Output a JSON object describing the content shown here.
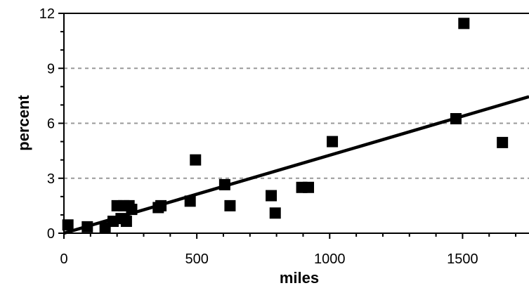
{
  "chart_data": {
    "type": "scatter",
    "xlabel": "miles",
    "ylabel": "percent",
    "xlim": [
      0,
      1750
    ],
    "ylim": [
      0,
      12
    ],
    "xticks": [
      0,
      500,
      1000,
      1500
    ],
    "yticks": [
      0,
      3,
      6,
      9,
      12
    ],
    "grid": "horizontal-dashed",
    "legend": "none",
    "marker_color": "#000000",
    "gridline_color": "#999999",
    "points": [
      {
        "x": 15,
        "y": 0.45
      },
      {
        "x": 88,
        "y": 0.35
      },
      {
        "x": 155,
        "y": 0.3
      },
      {
        "x": 185,
        "y": 0.65
      },
      {
        "x": 200,
        "y": 1.5
      },
      {
        "x": 215,
        "y": 0.8
      },
      {
        "x": 225,
        "y": 1.5
      },
      {
        "x": 235,
        "y": 0.65
      },
      {
        "x": 245,
        "y": 1.5
      },
      {
        "x": 255,
        "y": 1.3
      },
      {
        "x": 355,
        "y": 1.4
      },
      {
        "x": 365,
        "y": 1.5
      },
      {
        "x": 475,
        "y": 1.75
      },
      {
        "x": 495,
        "y": 4.0
      },
      {
        "x": 605,
        "y": 2.65
      },
      {
        "x": 625,
        "y": 1.5
      },
      {
        "x": 780,
        "y": 2.05
      },
      {
        "x": 795,
        "y": 1.1
      },
      {
        "x": 895,
        "y": 2.5
      },
      {
        "x": 920,
        "y": 2.5
      },
      {
        "x": 1010,
        "y": 5.0
      },
      {
        "x": 1475,
        "y": 6.25
      },
      {
        "x": 1505,
        "y": 11.45
      },
      {
        "x": 1650,
        "y": 4.95
      }
    ],
    "trendline": {
      "x0": 0,
      "y0": 0,
      "x1": 1750,
      "y1": 7.45
    }
  }
}
